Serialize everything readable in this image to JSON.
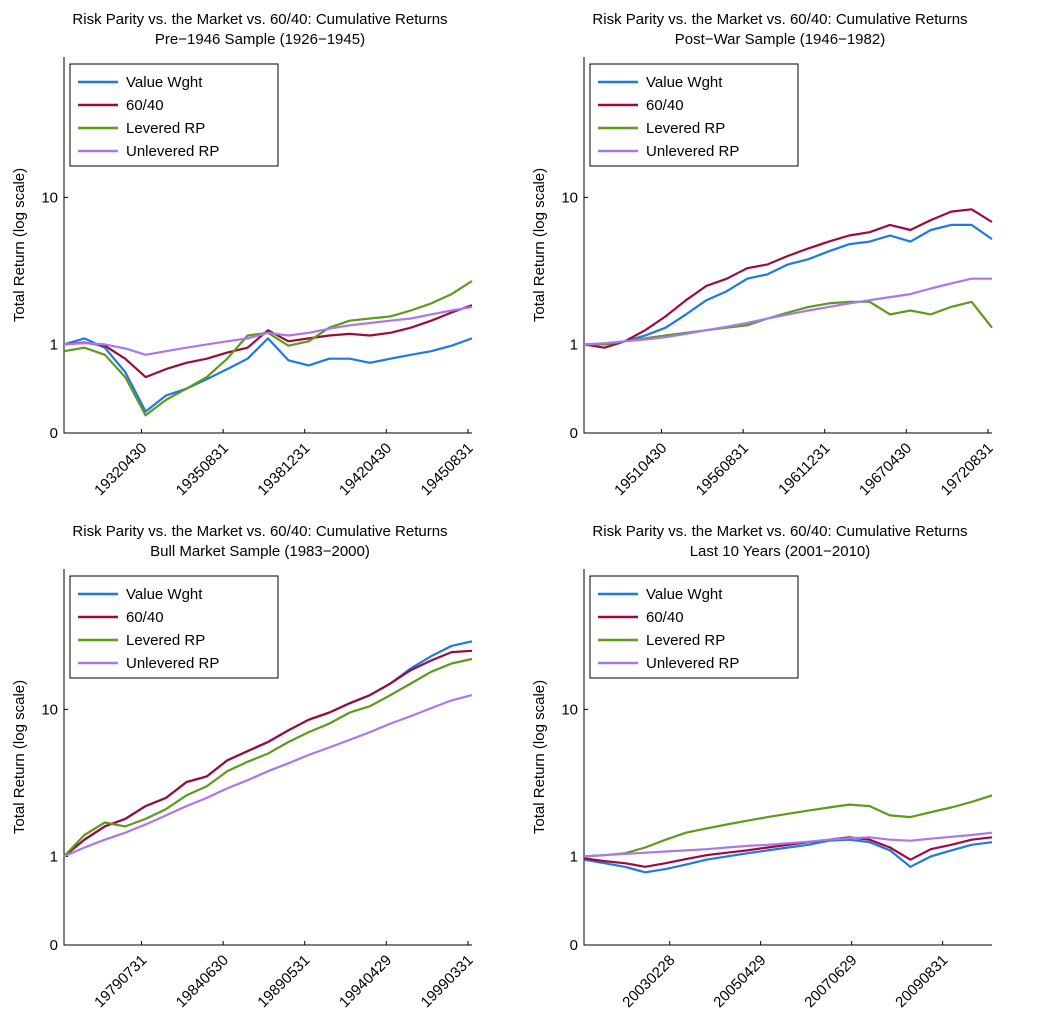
{
  "chart_data": [
    {
      "type": "line",
      "title": "Risk Parity vs. the Market vs. 60/40: Cumulative Returns",
      "subtitle": "Pre−1946 Sample (1926−1945)",
      "ylabel": "Total Return (log scale)",
      "xlabel": "",
      "y_scale": "log",
      "y_ticks": [
        {
          "value": 0.25,
          "label": "0"
        },
        {
          "value": 1,
          "label": "1"
        },
        {
          "value": 10,
          "label": "10"
        }
      ],
      "ylim": [
        0.25,
        90
      ],
      "x_ticks": [
        "19320430",
        "19350831",
        "19381231",
        "19420430",
        "19450831"
      ],
      "legend_position": "top-left",
      "series": [
        {
          "name": "Value Wght",
          "color": "#1f77e8",
          "x": [
            0,
            0.05,
            0.1,
            0.15,
            0.2,
            0.25,
            0.3,
            0.35,
            0.4,
            0.45,
            0.5,
            0.55,
            0.6,
            0.65,
            0.7,
            0.75,
            0.8,
            0.85,
            0.9,
            0.95,
            1
          ],
          "values": [
            1.0,
            1.1,
            0.95,
            0.65,
            0.35,
            0.45,
            0.5,
            0.58,
            0.68,
            0.8,
            1.1,
            0.78,
            0.72,
            0.8,
            0.8,
            0.75,
            0.8,
            0.85,
            0.9,
            0.98,
            1.1
          ]
        },
        {
          "name": "60/40",
          "color": "#9e0a3c",
          "x": [
            0,
            0.05,
            0.1,
            0.15,
            0.2,
            0.25,
            0.3,
            0.35,
            0.4,
            0.45,
            0.5,
            0.55,
            0.6,
            0.65,
            0.7,
            0.75,
            0.8,
            0.85,
            0.9,
            0.95,
            1
          ],
          "values": [
            1.0,
            1.03,
            0.98,
            0.8,
            0.6,
            0.68,
            0.75,
            0.8,
            0.88,
            0.95,
            1.25,
            1.05,
            1.1,
            1.15,
            1.18,
            1.15,
            1.2,
            1.3,
            1.45,
            1.65,
            1.85
          ]
        },
        {
          "name": "Levered RP",
          "color": "#5f9a1a",
          "x": [
            0,
            0.05,
            0.1,
            0.15,
            0.2,
            0.25,
            0.3,
            0.35,
            0.4,
            0.45,
            0.5,
            0.55,
            0.6,
            0.65,
            0.7,
            0.75,
            0.8,
            0.85,
            0.9,
            0.95,
            1
          ],
          "values": [
            0.9,
            0.95,
            0.85,
            0.6,
            0.33,
            0.42,
            0.5,
            0.6,
            0.8,
            1.15,
            1.2,
            0.98,
            1.05,
            1.3,
            1.45,
            1.5,
            1.55,
            1.7,
            1.9,
            2.2,
            2.7
          ]
        },
        {
          "name": "Unlevered RP",
          "color": "#a978ef",
          "x": [
            0,
            0.05,
            0.1,
            0.15,
            0.2,
            0.25,
            0.3,
            0.35,
            0.4,
            0.45,
            0.5,
            0.55,
            0.6,
            0.65,
            0.7,
            0.75,
            0.8,
            0.85,
            0.9,
            0.95,
            1
          ],
          "values": [
            1.0,
            1.02,
            1.0,
            0.94,
            0.85,
            0.9,
            0.95,
            1.0,
            1.05,
            1.1,
            1.2,
            1.15,
            1.2,
            1.28,
            1.35,
            1.4,
            1.45,
            1.5,
            1.6,
            1.7,
            1.8
          ]
        }
      ]
    },
    {
      "type": "line",
      "title": "Risk Parity vs. the Market vs. 60/40: Cumulative Returns",
      "subtitle": "Post−War Sample (1946−1982)",
      "ylabel": "Total Return (log scale)",
      "xlabel": "",
      "y_scale": "log",
      "y_ticks": [
        {
          "value": 0.25,
          "label": "0"
        },
        {
          "value": 1,
          "label": "1"
        },
        {
          "value": 10,
          "label": "10"
        }
      ],
      "ylim": [
        0.25,
        90
      ],
      "x_ticks": [
        "19510430",
        "19560831",
        "19611231",
        "19670430",
        "19720831"
      ],
      "legend_position": "top-left",
      "series": [
        {
          "name": "Value Wght",
          "color": "#1f77e8",
          "x": [
            0,
            0.05,
            0.1,
            0.15,
            0.2,
            0.25,
            0.3,
            0.35,
            0.4,
            0.45,
            0.5,
            0.55,
            0.6,
            0.65,
            0.7,
            0.75,
            0.8,
            0.85,
            0.9,
            0.95,
            1
          ],
          "values": [
            1.0,
            1.0,
            1.05,
            1.15,
            1.3,
            1.6,
            2.0,
            2.3,
            2.8,
            3.0,
            3.5,
            3.8,
            4.3,
            4.8,
            5.0,
            5.5,
            5.0,
            6.0,
            6.5,
            6.5,
            5.2
          ]
        },
        {
          "name": "60/40",
          "color": "#9e0a3c",
          "x": [
            0,
            0.05,
            0.1,
            0.15,
            0.2,
            0.25,
            0.3,
            0.35,
            0.4,
            0.45,
            0.5,
            0.55,
            0.6,
            0.65,
            0.7,
            0.75,
            0.8,
            0.85,
            0.9,
            0.95,
            1
          ],
          "values": [
            1.0,
            0.95,
            1.05,
            1.25,
            1.55,
            2.0,
            2.5,
            2.8,
            3.3,
            3.5,
            4.0,
            4.5,
            5.0,
            5.5,
            5.8,
            6.5,
            6.0,
            7.0,
            8.0,
            8.3,
            6.8
          ]
        },
        {
          "name": "Levered RP",
          "color": "#5f9a1a",
          "x": [
            0,
            0.05,
            0.1,
            0.15,
            0.2,
            0.25,
            0.3,
            0.35,
            0.4,
            0.45,
            0.5,
            0.55,
            0.6,
            0.65,
            0.7,
            0.75,
            0.8,
            0.85,
            0.9,
            0.95,
            1
          ],
          "values": [
            1.0,
            1.0,
            1.05,
            1.1,
            1.15,
            1.2,
            1.25,
            1.3,
            1.35,
            1.5,
            1.65,
            1.8,
            1.9,
            1.95,
            1.95,
            1.6,
            1.7,
            1.6,
            1.8,
            1.95,
            1.3
          ]
        },
        {
          "name": "Unlevered RP",
          "color": "#a978ef",
          "x": [
            0,
            0.05,
            0.1,
            0.15,
            0.2,
            0.25,
            0.3,
            0.35,
            0.4,
            0.45,
            0.5,
            0.55,
            0.6,
            0.65,
            0.7,
            0.75,
            0.8,
            0.85,
            0.9,
            0.95,
            1
          ],
          "values": [
            1.0,
            1.02,
            1.05,
            1.08,
            1.12,
            1.18,
            1.25,
            1.32,
            1.4,
            1.5,
            1.6,
            1.7,
            1.8,
            1.9,
            2.0,
            2.1,
            2.2,
            2.4,
            2.6,
            2.8,
            2.8
          ]
        }
      ]
    },
    {
      "type": "line",
      "title": "Risk Parity vs. the Market vs. 60/40: Cumulative Returns",
      "subtitle": "Bull Market Sample (1983−2000)",
      "ylabel": "Total Return (log scale)",
      "xlabel": "",
      "y_scale": "log",
      "y_ticks": [
        {
          "value": 0.25,
          "label": "0"
        },
        {
          "value": 1,
          "label": "1"
        },
        {
          "value": 10,
          "label": "10"
        }
      ],
      "ylim": [
        0.25,
        90
      ],
      "x_ticks": [
        "19790731",
        "19840630",
        "19890531",
        "19940429",
        "19990331"
      ],
      "legend_position": "top-left",
      "series": [
        {
          "name": "Value Wght",
          "color": "#1f77e8",
          "x": [
            0,
            0.05,
            0.1,
            0.15,
            0.2,
            0.25,
            0.3,
            0.35,
            0.4,
            0.45,
            0.5,
            0.55,
            0.6,
            0.65,
            0.7,
            0.75,
            0.8,
            0.85,
            0.9,
            0.95,
            1
          ],
          "values": [
            1.0,
            1.3,
            1.6,
            1.8,
            2.2,
            2.5,
            3.2,
            3.5,
            4.5,
            5.2,
            6.0,
            7.2,
            8.5,
            9.5,
            11.0,
            12.5,
            15.0,
            19.0,
            23.0,
            27.0,
            29.0
          ]
        },
        {
          "name": "60/40",
          "color": "#9e0a3c",
          "x": [
            0,
            0.05,
            0.1,
            0.15,
            0.2,
            0.25,
            0.3,
            0.35,
            0.4,
            0.45,
            0.5,
            0.55,
            0.6,
            0.65,
            0.7,
            0.75,
            0.8,
            0.85,
            0.9,
            0.95,
            1
          ],
          "values": [
            1.0,
            1.3,
            1.6,
            1.8,
            2.2,
            2.5,
            3.2,
            3.5,
            4.5,
            5.2,
            6.0,
            7.2,
            8.5,
            9.5,
            11.0,
            12.5,
            15.0,
            18.5,
            21.5,
            24.5,
            25.0
          ]
        },
        {
          "name": "Levered RP",
          "color": "#5f9a1a",
          "x": [
            0,
            0.05,
            0.1,
            0.15,
            0.2,
            0.25,
            0.3,
            0.35,
            0.4,
            0.45,
            0.5,
            0.55,
            0.6,
            0.65,
            0.7,
            0.75,
            0.8,
            0.85,
            0.9,
            0.95,
            1
          ],
          "values": [
            1.0,
            1.4,
            1.7,
            1.6,
            1.8,
            2.1,
            2.6,
            3.0,
            3.8,
            4.4,
            5.0,
            6.0,
            7.0,
            8.0,
            9.5,
            10.5,
            12.5,
            15.0,
            18.0,
            20.5,
            22.0
          ]
        },
        {
          "name": "Unlevered RP",
          "color": "#a978ef",
          "x": [
            0,
            0.05,
            0.1,
            0.15,
            0.2,
            0.25,
            0.3,
            0.35,
            0.4,
            0.45,
            0.5,
            0.55,
            0.6,
            0.65,
            0.7,
            0.75,
            0.8,
            0.85,
            0.9,
            0.95,
            1
          ],
          "values": [
            1.0,
            1.15,
            1.3,
            1.45,
            1.65,
            1.9,
            2.2,
            2.5,
            2.9,
            3.3,
            3.8,
            4.3,
            4.9,
            5.5,
            6.2,
            7.0,
            8.0,
            9.0,
            10.2,
            11.5,
            12.5
          ]
        }
      ]
    },
    {
      "type": "line",
      "title": "Risk Parity vs. the Market vs. 60/40: Cumulative Returns",
      "subtitle": "Last 10 Years (2001−2010)",
      "ylabel": "Total Return (log scale)",
      "xlabel": "",
      "y_scale": "log",
      "y_ticks": [
        {
          "value": 0.25,
          "label": "0"
        },
        {
          "value": 1,
          "label": "1"
        },
        {
          "value": 10,
          "label": "10"
        }
      ],
      "ylim": [
        0.25,
        90
      ],
      "x_ticks": [
        "20030228",
        "20050429",
        "20070629",
        "20090831"
      ],
      "legend_position": "top-left",
      "series": [
        {
          "name": "Value Wght",
          "color": "#1f77e8",
          "x": [
            0,
            0.05,
            0.1,
            0.15,
            0.2,
            0.25,
            0.3,
            0.35,
            0.4,
            0.45,
            0.5,
            0.55,
            0.6,
            0.65,
            0.7,
            0.75,
            0.8,
            0.85,
            0.9,
            0.95,
            1
          ],
          "values": [
            0.95,
            0.9,
            0.85,
            0.78,
            0.82,
            0.88,
            0.95,
            1.0,
            1.05,
            1.1,
            1.15,
            1.2,
            1.28,
            1.3,
            1.25,
            1.1,
            0.85,
            1.0,
            1.1,
            1.2,
            1.25
          ]
        },
        {
          "name": "60/40",
          "color": "#9e0a3c",
          "x": [
            0,
            0.05,
            0.1,
            0.15,
            0.2,
            0.25,
            0.3,
            0.35,
            0.4,
            0.45,
            0.5,
            0.55,
            0.6,
            0.65,
            0.7,
            0.75,
            0.8,
            0.85,
            0.9,
            0.95,
            1
          ],
          "values": [
            0.97,
            0.93,
            0.9,
            0.85,
            0.9,
            0.96,
            1.02,
            1.06,
            1.1,
            1.15,
            1.2,
            1.25,
            1.3,
            1.35,
            1.3,
            1.15,
            0.95,
            1.12,
            1.2,
            1.3,
            1.35
          ]
        },
        {
          "name": "Levered RP",
          "color": "#5f9a1a",
          "x": [
            0,
            0.05,
            0.1,
            0.15,
            0.2,
            0.25,
            0.3,
            0.35,
            0.4,
            0.45,
            0.5,
            0.55,
            0.6,
            0.65,
            0.7,
            0.75,
            0.8,
            0.85,
            0.9,
            0.95,
            1
          ],
          "values": [
            1.0,
            1.02,
            1.05,
            1.15,
            1.3,
            1.45,
            1.55,
            1.65,
            1.75,
            1.85,
            1.95,
            2.05,
            2.15,
            2.25,
            2.2,
            1.9,
            1.85,
            2.0,
            2.15,
            2.35,
            2.6
          ]
        },
        {
          "name": "Unlevered RP",
          "color": "#a978ef",
          "x": [
            0,
            0.05,
            0.1,
            0.15,
            0.2,
            0.25,
            0.3,
            0.35,
            0.4,
            0.45,
            0.5,
            0.55,
            0.6,
            0.65,
            0.7,
            0.75,
            0.8,
            0.85,
            0.9,
            0.95,
            1
          ],
          "values": [
            1.0,
            1.02,
            1.04,
            1.06,
            1.08,
            1.1,
            1.12,
            1.15,
            1.18,
            1.2,
            1.23,
            1.26,
            1.3,
            1.33,
            1.35,
            1.3,
            1.28,
            1.32,
            1.36,
            1.4,
            1.45
          ]
        }
      ]
    }
  ]
}
